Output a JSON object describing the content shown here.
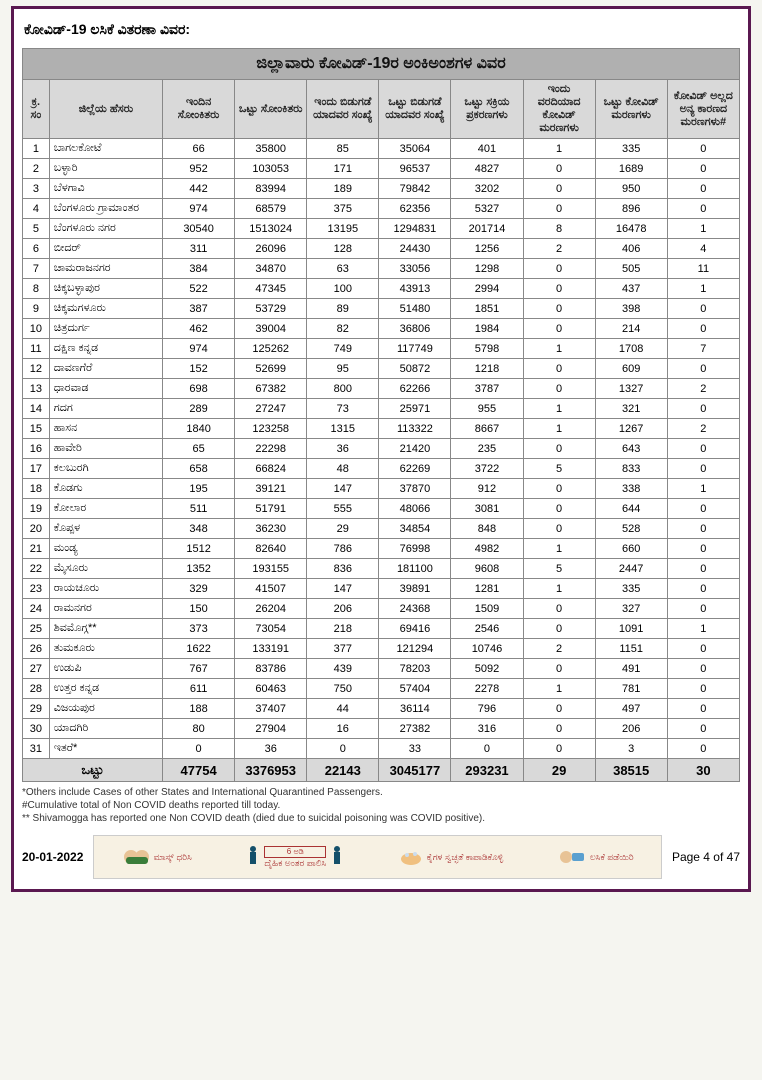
{
  "doc_title": "ಕೋವಿಡ್-19 ಲಸಿಕೆ ವಿತರಣಾ ವಿವರ:",
  "table_title": "ಜಿಲ್ಲಾವಾರು ಕೋವಿಡ್-19ರ ಅಂಕಿಅಂಶಗಳ ವಿವರ",
  "headers": {
    "sn": "ಕ್ರ. ಸಂ",
    "district": "ಜಿಲ್ಲೆಯ ಹೆಸರು",
    "today_positive": "ಇಂದಿನ ಸೋಂಕಿತರು",
    "total_positive": "ಒಟ್ಟು ಸೋಂಕಿತರು",
    "today_discharge": "ಇಂದು ಬಿಡುಗಡೆ ಯಾದವರ ಸಂಖ್ಯೆ",
    "total_discharge": "ಒಟ್ಟು ಬಿಡುಗಡೆ ಯಾದವರ ಸಂಖ್ಯೆ",
    "active": "ಒಟ್ಟು ಸಕ್ರಿಯ ಪ್ರಕರಣಗಳು",
    "today_deaths": "ಇಂದು ವರದಿಯಾದ ಕೋವಿಡ್ ಮರಣಗಳು",
    "total_deaths": "ಒಟ್ಟು ಕೋವಿಡ್ ಮರಣಗಳು",
    "non_covid_deaths": "ಕೋವಿಡ್ ಅಲ್ಲದ ಅನ್ಯ ಕಾರಣದ ಮರಣಗಳು#"
  },
  "rows": [
    {
      "sn": "1",
      "district": "ಬಾಗಲಕೋಟೆ",
      "c1": "66",
      "c2": "35800",
      "c3": "85",
      "c4": "35064",
      "c5": "401",
      "c6": "1",
      "c7": "335",
      "c8": "0"
    },
    {
      "sn": "2",
      "district": "ಬಳ್ಳಾರಿ",
      "c1": "952",
      "c2": "103053",
      "c3": "171",
      "c4": "96537",
      "c5": "4827",
      "c6": "0",
      "c7": "1689",
      "c8": "0"
    },
    {
      "sn": "3",
      "district": "ಬೆಳಗಾವಿ",
      "c1": "442",
      "c2": "83994",
      "c3": "189",
      "c4": "79842",
      "c5": "3202",
      "c6": "0",
      "c7": "950",
      "c8": "0"
    },
    {
      "sn": "4",
      "district": "ಬೆಂಗಳೂರು ಗ್ರಾಮಾಂತರ",
      "c1": "974",
      "c2": "68579",
      "c3": "375",
      "c4": "62356",
      "c5": "5327",
      "c6": "0",
      "c7": "896",
      "c8": "0"
    },
    {
      "sn": "5",
      "district": "ಬೆಂಗಳೂರು ನಗರ",
      "c1": "30540",
      "c2": "1513024",
      "c3": "13195",
      "c4": "1294831",
      "c5": "201714",
      "c6": "8",
      "c7": "16478",
      "c8": "1"
    },
    {
      "sn": "6",
      "district": "ಬೀದರ್",
      "c1": "311",
      "c2": "26096",
      "c3": "128",
      "c4": "24430",
      "c5": "1256",
      "c6": "2",
      "c7": "406",
      "c8": "4"
    },
    {
      "sn": "7",
      "district": "ಚಾಮರಾಜನಗರ",
      "c1": "384",
      "c2": "34870",
      "c3": "63",
      "c4": "33056",
      "c5": "1298",
      "c6": "0",
      "c7": "505",
      "c8": "11"
    },
    {
      "sn": "8",
      "district": "ಚಿಕ್ಕಬಳ್ಳಾಪುರ",
      "c1": "522",
      "c2": "47345",
      "c3": "100",
      "c4": "43913",
      "c5": "2994",
      "c6": "0",
      "c7": "437",
      "c8": "1"
    },
    {
      "sn": "9",
      "district": "ಚಿಕ್ಕಮಗಳೂರು",
      "c1": "387",
      "c2": "53729",
      "c3": "89",
      "c4": "51480",
      "c5": "1851",
      "c6": "0",
      "c7": "398",
      "c8": "0"
    },
    {
      "sn": "10",
      "district": "ಚಿತ್ರದುರ್ಗ",
      "c1": "462",
      "c2": "39004",
      "c3": "82",
      "c4": "36806",
      "c5": "1984",
      "c6": "0",
      "c7": "214",
      "c8": "0"
    },
    {
      "sn": "11",
      "district": "ದಕ್ಷಿಣ ಕನ್ನಡ",
      "c1": "974",
      "c2": "125262",
      "c3": "749",
      "c4": "117749",
      "c5": "5798",
      "c6": "1",
      "c7": "1708",
      "c8": "7"
    },
    {
      "sn": "12",
      "district": "ದಾವಣಗೆರೆ",
      "c1": "152",
      "c2": "52699",
      "c3": "95",
      "c4": "50872",
      "c5": "1218",
      "c6": "0",
      "c7": "609",
      "c8": "0"
    },
    {
      "sn": "13",
      "district": "ಧಾರವಾಡ",
      "c1": "698",
      "c2": "67382",
      "c3": "800",
      "c4": "62266",
      "c5": "3787",
      "c6": "0",
      "c7": "1327",
      "c8": "2"
    },
    {
      "sn": "14",
      "district": "ಗದಗ",
      "c1": "289",
      "c2": "27247",
      "c3": "73",
      "c4": "25971",
      "c5": "955",
      "c6": "1",
      "c7": "321",
      "c8": "0"
    },
    {
      "sn": "15",
      "district": "ಹಾಸನ",
      "c1": "1840",
      "c2": "123258",
      "c3": "1315",
      "c4": "113322",
      "c5": "8667",
      "c6": "1",
      "c7": "1267",
      "c8": "2"
    },
    {
      "sn": "16",
      "district": "ಹಾವೇರಿ",
      "c1": "65",
      "c2": "22298",
      "c3": "36",
      "c4": "21420",
      "c5": "235",
      "c6": "0",
      "c7": "643",
      "c8": "0"
    },
    {
      "sn": "17",
      "district": "ಕಲಬುರಗಿ",
      "c1": "658",
      "c2": "66824",
      "c3": "48",
      "c4": "62269",
      "c5": "3722",
      "c6": "5",
      "c7": "833",
      "c8": "0"
    },
    {
      "sn": "18",
      "district": "ಕೊಡಗು",
      "c1": "195",
      "c2": "39121",
      "c3": "147",
      "c4": "37870",
      "c5": "912",
      "c6": "0",
      "c7": "338",
      "c8": "1"
    },
    {
      "sn": "19",
      "district": "ಕೋಲಾರ",
      "c1": "511",
      "c2": "51791",
      "c3": "555",
      "c4": "48066",
      "c5": "3081",
      "c6": "0",
      "c7": "644",
      "c8": "0"
    },
    {
      "sn": "20",
      "district": "ಕೊಪ್ಪಳ",
      "c1": "348",
      "c2": "36230",
      "c3": "29",
      "c4": "34854",
      "c5": "848",
      "c6": "0",
      "c7": "528",
      "c8": "0"
    },
    {
      "sn": "21",
      "district": "ಮಂಡ್ಯ",
      "c1": "1512",
      "c2": "82640",
      "c3": "786",
      "c4": "76998",
      "c5": "4982",
      "c6": "1",
      "c7": "660",
      "c8": "0"
    },
    {
      "sn": "22",
      "district": "ಮೈಸೂರು",
      "c1": "1352",
      "c2": "193155",
      "c3": "836",
      "c4": "181100",
      "c5": "9608",
      "c6": "5",
      "c7": "2447",
      "c8": "0"
    },
    {
      "sn": "23",
      "district": "ರಾಯಚೂರು",
      "c1": "329",
      "c2": "41507",
      "c3": "147",
      "c4": "39891",
      "c5": "1281",
      "c6": "1",
      "c7": "335",
      "c8": "0"
    },
    {
      "sn": "24",
      "district": "ರಾಮನಗರ",
      "c1": "150",
      "c2": "26204",
      "c3": "206",
      "c4": "24368",
      "c5": "1509",
      "c6": "0",
      "c7": "327",
      "c8": "0"
    },
    {
      "sn": "25",
      "district": "ಶಿವಮೊಗ್ಗ**",
      "c1": "373",
      "c2": "73054",
      "c3": "218",
      "c4": "69416",
      "c5": "2546",
      "c6": "0",
      "c7": "1091",
      "c8": "1"
    },
    {
      "sn": "26",
      "district": "ತುಮಕೂರು",
      "c1": "1622",
      "c2": "133191",
      "c3": "377",
      "c4": "121294",
      "c5": "10746",
      "c6": "2",
      "c7": "1151",
      "c8": "0"
    },
    {
      "sn": "27",
      "district": "ಉಡುಪಿ",
      "c1": "767",
      "c2": "83786",
      "c3": "439",
      "c4": "78203",
      "c5": "5092",
      "c6": "0",
      "c7": "491",
      "c8": "0"
    },
    {
      "sn": "28",
      "district": "ಉತ್ತರ ಕನ್ನಡ",
      "c1": "611",
      "c2": "60463",
      "c3": "750",
      "c4": "57404",
      "c5": "2278",
      "c6": "1",
      "c7": "781",
      "c8": "0"
    },
    {
      "sn": "29",
      "district": "ವಿಜಯಪುರ",
      "c1": "188",
      "c2": "37407",
      "c3": "44",
      "c4": "36114",
      "c5": "796",
      "c6": "0",
      "c7": "497",
      "c8": "0"
    },
    {
      "sn": "30",
      "district": "ಯಾದಗಿರಿ",
      "c1": "80",
      "c2": "27904",
      "c3": "16",
      "c4": "27382",
      "c5": "316",
      "c6": "0",
      "c7": "206",
      "c8": "0"
    },
    {
      "sn": "31",
      "district": "ಇತರೆ*",
      "c1": "0",
      "c2": "36",
      "c3": "0",
      "c4": "33",
      "c5": "0",
      "c6": "0",
      "c7": "3",
      "c8": "0"
    }
  ],
  "total": {
    "label": "ಒಟ್ಟು",
    "c1": "47754",
    "c2": "3376953",
    "c3": "22143",
    "c4": "3045177",
    "c5": "293231",
    "c6": "29",
    "c7": "38515",
    "c8": "30"
  },
  "footnotes": [
    "*Others include Cases of other States and International Quarantined Passengers.",
    "#Cumulative total of Non COVID deaths reported till today.",
    "** Shivamogga has reported one Non COVID death (died due to suicidal poisoning was COVID positive)."
  ],
  "banner": {
    "p1": "ಮಾಸ್ಕ್ ಧರಿಸಿ",
    "p2_top": "6 ಅಡಿ",
    "p2_bottom": "ದೈಹಿಕ ಅಂತರ ಪಾಲಿಸಿ",
    "p3": "ಕೈಗಳ ಸ್ವಚ್ಛತೆ ಕಾಪಾಡಿಕೊಳ್ಳಿ",
    "p4": "ಲಸಿಕೆ ಪಡೆಯಿರಿ"
  },
  "footer": {
    "date": "20-01-2022",
    "page": "Page 4 of 47"
  },
  "colors": {
    "border": "#5a1850",
    "header_bg": "#d9d9d9",
    "title_bg": "#b0b0b0"
  }
}
